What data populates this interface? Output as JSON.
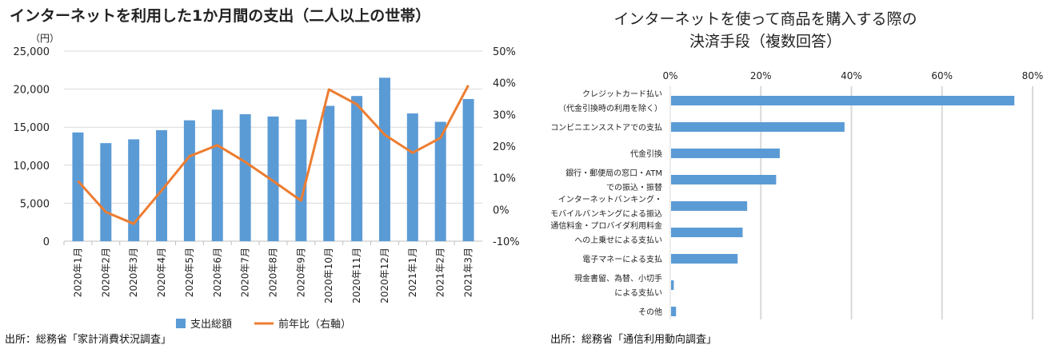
{
  "chart_data": [
    {
      "type": "bar+line",
      "title": "インターネットを利用した1か月間の支出（二人以上の世帯）",
      "y_unit": "（円）",
      "categories": [
        "2020年1月",
        "2020年2月",
        "2020年3月",
        "2020年4月",
        "2020年5月",
        "2020年6月",
        "2020年7月",
        "2020年8月",
        "2020年9月",
        "2020年10月",
        "2020年11月",
        "2020年12月",
        "2021年1月",
        "2021年2月",
        "2021年3月"
      ],
      "series": [
        {
          "name": "支出総額",
          "kind": "bar",
          "axis": "left",
          "color": "#5b9bd5",
          "values": [
            14300,
            12900,
            13400,
            14600,
            15900,
            17300,
            16700,
            16400,
            16000,
            17800,
            19100,
            21500,
            16800,
            15700,
            18700
          ]
        },
        {
          "name": "前年比（右軸）",
          "kind": "line",
          "axis": "right",
          "color": "#ed7d31",
          "values": [
            9.0,
            -0.8,
            -4.5,
            6.0,
            16.8,
            20.3,
            15.0,
            9.0,
            2.8,
            37.9,
            33.2,
            23.6,
            17.9,
            22.6,
            39.2
          ]
        }
      ],
      "ylim": [
        0,
        25000
      ],
      "yticks": [
        "0",
        "5,000",
        "10,000",
        "15,000",
        "20,000",
        "25,000"
      ],
      "y2lim": [
        -10,
        50
      ],
      "y2ticks": [
        "-10%",
        "0%",
        "10%",
        "20%",
        "30%",
        "40%",
        "50%"
      ],
      "grid": true,
      "legend": "bottom",
      "source": "出所：総務省「家計消費状況調査」"
    },
    {
      "type": "bar",
      "orientation": "horizontal",
      "title_lines": [
        "インターネットを使って商品を購入する際の",
        "決済手段（複数回答）"
      ],
      "categories": [
        [
          "クレジットカード払い",
          "（代金引換時の利用を除く）"
        ],
        [
          "コンビニエンスストアでの支払"
        ],
        [
          "代金引換"
        ],
        [
          "銀行・郵便局の窓口・ATM",
          "での振込・振替"
        ],
        [
          "インターネットバンキング・",
          "モバイルバンキングによる振込"
        ],
        [
          "通信料金・プロバイダ利用料金",
          "への上乗せによる支払い"
        ],
        [
          "電子マネーによる支払"
        ],
        [
          "現金書留、為替、小切手",
          "による支払い"
        ],
        [
          "その他"
        ]
      ],
      "values": [
        75.8,
        38.3,
        24.0,
        23.2,
        16.8,
        15.8,
        14.7,
        0.6,
        1.1
      ],
      "color": "#5b9bd5",
      "xlim": [
        0,
        80
      ],
      "xticks": [
        "0%",
        "20%",
        "40%",
        "60%",
        "80%"
      ],
      "grid": true,
      "source": "出所：総務省「通信利用動向調査」"
    }
  ]
}
